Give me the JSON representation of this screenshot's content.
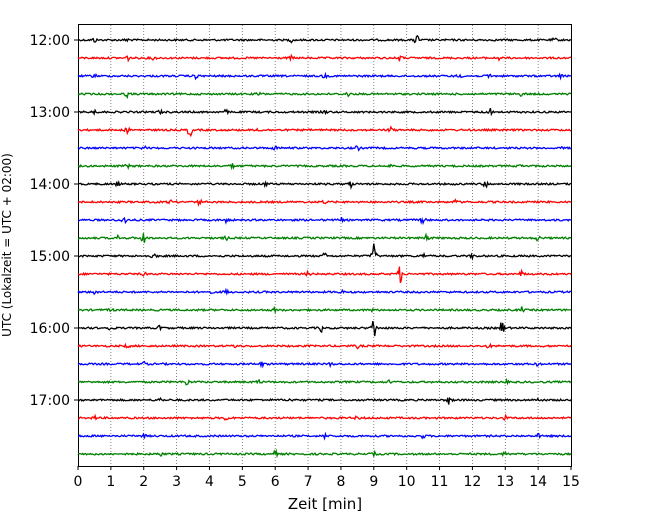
{
  "chart_data": {
    "type": "line",
    "xlabel": "Zeit  [min]",
    "ylabel": "UTC (Lokalzeit = UTC + 02:00)",
    "xlim": [
      0,
      15
    ],
    "x_ticks": [
      0,
      1,
      2,
      3,
      4,
      5,
      6,
      7,
      8,
      9,
      10,
      11,
      12,
      13,
      14,
      15
    ],
    "y_tick_labels": [
      "12:00",
      "13:00",
      "14:00",
      "15:00",
      "16:00",
      "17:00"
    ],
    "grid": "vertical dotted lines at each minute",
    "trace_colors": [
      "#000000",
      "#ff0000",
      "#0000ff",
      "#008000"
    ],
    "series": [
      {
        "start": "12:00",
        "color": "#000000",
        "events": [
          [
            0.5,
            1.2
          ],
          [
            1.5,
            1
          ],
          [
            6.5,
            1
          ],
          [
            10.3,
            3.5
          ],
          [
            14.5,
            1
          ]
        ]
      },
      {
        "start": "12:15",
        "color": "#ff0000",
        "events": [
          [
            1.5,
            1.5
          ],
          [
            2.3,
            1
          ],
          [
            6.5,
            1
          ],
          [
            9.8,
            1.8
          ],
          [
            12.8,
            1
          ]
        ]
      },
      {
        "start": "12:30",
        "color": "#0000ff",
        "events": [
          [
            0.5,
            1
          ],
          [
            3.6,
            1.5
          ],
          [
            7.5,
            1
          ],
          [
            11.6,
            1.5
          ],
          [
            12.5,
            1.4
          ],
          [
            14.7,
            1.2
          ]
        ]
      },
      {
        "start": "12:45",
        "color": "#008000",
        "events": [
          [
            1.5,
            1.5
          ],
          [
            5.5,
            1
          ],
          [
            8.2,
            1.2
          ],
          [
            13.5,
            1
          ]
        ]
      },
      {
        "start": "13:00",
        "color": "#000000",
        "events": [
          [
            0.5,
            1
          ],
          [
            2.5,
            1
          ],
          [
            4.5,
            1
          ],
          [
            7.5,
            1
          ],
          [
            12.5,
            5
          ]
        ]
      },
      {
        "start": "13:15",
        "color": "#ff0000",
        "events": [
          [
            1.5,
            1.5
          ],
          [
            3.4,
            4
          ],
          [
            5.5,
            1.2
          ],
          [
            9.5,
            1.5
          ]
        ]
      },
      {
        "start": "13:30",
        "color": "#0000ff",
        "events": [
          [
            2,
            1
          ],
          [
            6,
            1
          ],
          [
            8.5,
            1.2
          ],
          [
            14.8,
            2
          ]
        ]
      },
      {
        "start": "13:45",
        "color": "#008000",
        "events": [
          [
            1.5,
            1
          ],
          [
            4.7,
            1.2
          ],
          [
            9.5,
            1
          ],
          [
            13.5,
            1
          ]
        ]
      },
      {
        "start": "14:00",
        "color": "#000000",
        "events": [
          [
            1.2,
            1
          ],
          [
            5.7,
            1
          ],
          [
            8.3,
            1.8
          ],
          [
            12.4,
            1.8
          ]
        ]
      },
      {
        "start": "14:15",
        "color": "#ff0000",
        "events": [
          [
            2.8,
            1
          ],
          [
            3.7,
            1.5
          ],
          [
            7.5,
            1
          ],
          [
            11.5,
            1
          ]
        ]
      },
      {
        "start": "14:30",
        "color": "#0000ff",
        "events": [
          [
            1.4,
            3
          ],
          [
            4.5,
            1.2
          ],
          [
            8,
            1.2
          ],
          [
            10.5,
            2.5
          ]
        ]
      },
      {
        "start": "14:45",
        "color": "#008000",
        "events": [
          [
            1.2,
            1.2
          ],
          [
            2,
            4.5
          ],
          [
            4.5,
            1
          ],
          [
            10.6,
            2
          ],
          [
            14,
            1.5
          ]
        ]
      },
      {
        "start": "15:00",
        "color": "#000000",
        "events": [
          [
            2.3,
            2
          ],
          [
            7.5,
            1.5
          ],
          [
            9,
            8
          ],
          [
            10.5,
            1.2
          ],
          [
            12,
            1.2
          ]
        ]
      },
      {
        "start": "15:15",
        "color": "#ff0000",
        "events": [
          [
            2,
            1
          ],
          [
            7,
            1
          ],
          [
            9.8,
            5
          ],
          [
            13.5,
            1.5
          ]
        ]
      },
      {
        "start": "15:30",
        "color": "#0000ff",
        "events": [
          [
            0.5,
            1.5
          ],
          [
            4,
            1.5
          ],
          [
            4.5,
            1.5
          ],
          [
            8,
            1
          ]
        ]
      },
      {
        "start": "15:45",
        "color": "#008000",
        "events": [
          [
            1,
            1
          ],
          [
            6,
            1.2
          ],
          [
            9,
            1
          ],
          [
            13.5,
            1.5
          ]
        ]
      },
      {
        "start": "16:00",
        "color": "#000000",
        "events": [
          [
            1,
            2
          ],
          [
            2.5,
            1.5
          ],
          [
            7.4,
            2
          ],
          [
            9,
            7
          ],
          [
            12.9,
            4
          ]
        ]
      },
      {
        "start": "16:15",
        "color": "#ff0000",
        "events": [
          [
            1.5,
            1
          ],
          [
            4.8,
            1.2
          ],
          [
            8.5,
            1
          ],
          [
            12.5,
            1
          ]
        ]
      },
      {
        "start": "16:30",
        "color": "#0000ff",
        "events": [
          [
            2,
            1
          ],
          [
            5.6,
            1.2
          ],
          [
            7.7,
            1
          ],
          [
            14,
            1
          ]
        ]
      },
      {
        "start": "16:45",
        "color": "#008000",
        "events": [
          [
            3.3,
            2.5
          ],
          [
            5.5,
            1.2
          ],
          [
            9.5,
            1
          ],
          [
            13,
            1
          ]
        ]
      },
      {
        "start": "17:00",
        "color": "#000000",
        "events": [
          [
            2.5,
            1
          ],
          [
            6.5,
            1
          ],
          [
            11.3,
            2.5
          ],
          [
            14,
            1
          ]
        ]
      },
      {
        "start": "17:15",
        "color": "#ff0000",
        "events": [
          [
            0.5,
            1
          ],
          [
            4.5,
            1.2
          ],
          [
            8.5,
            1
          ],
          [
            13,
            1
          ]
        ]
      },
      {
        "start": "17:30",
        "color": "#0000ff",
        "events": [
          [
            2,
            1
          ],
          [
            7.5,
            1.5
          ],
          [
            10.5,
            1
          ],
          [
            14,
            1
          ]
        ]
      },
      {
        "start": "17:45",
        "color": "#008000",
        "events": [
          [
            2.5,
            1
          ],
          [
            6,
            1.5
          ],
          [
            9,
            1
          ],
          [
            13,
            1.5
          ]
        ]
      }
    ]
  }
}
